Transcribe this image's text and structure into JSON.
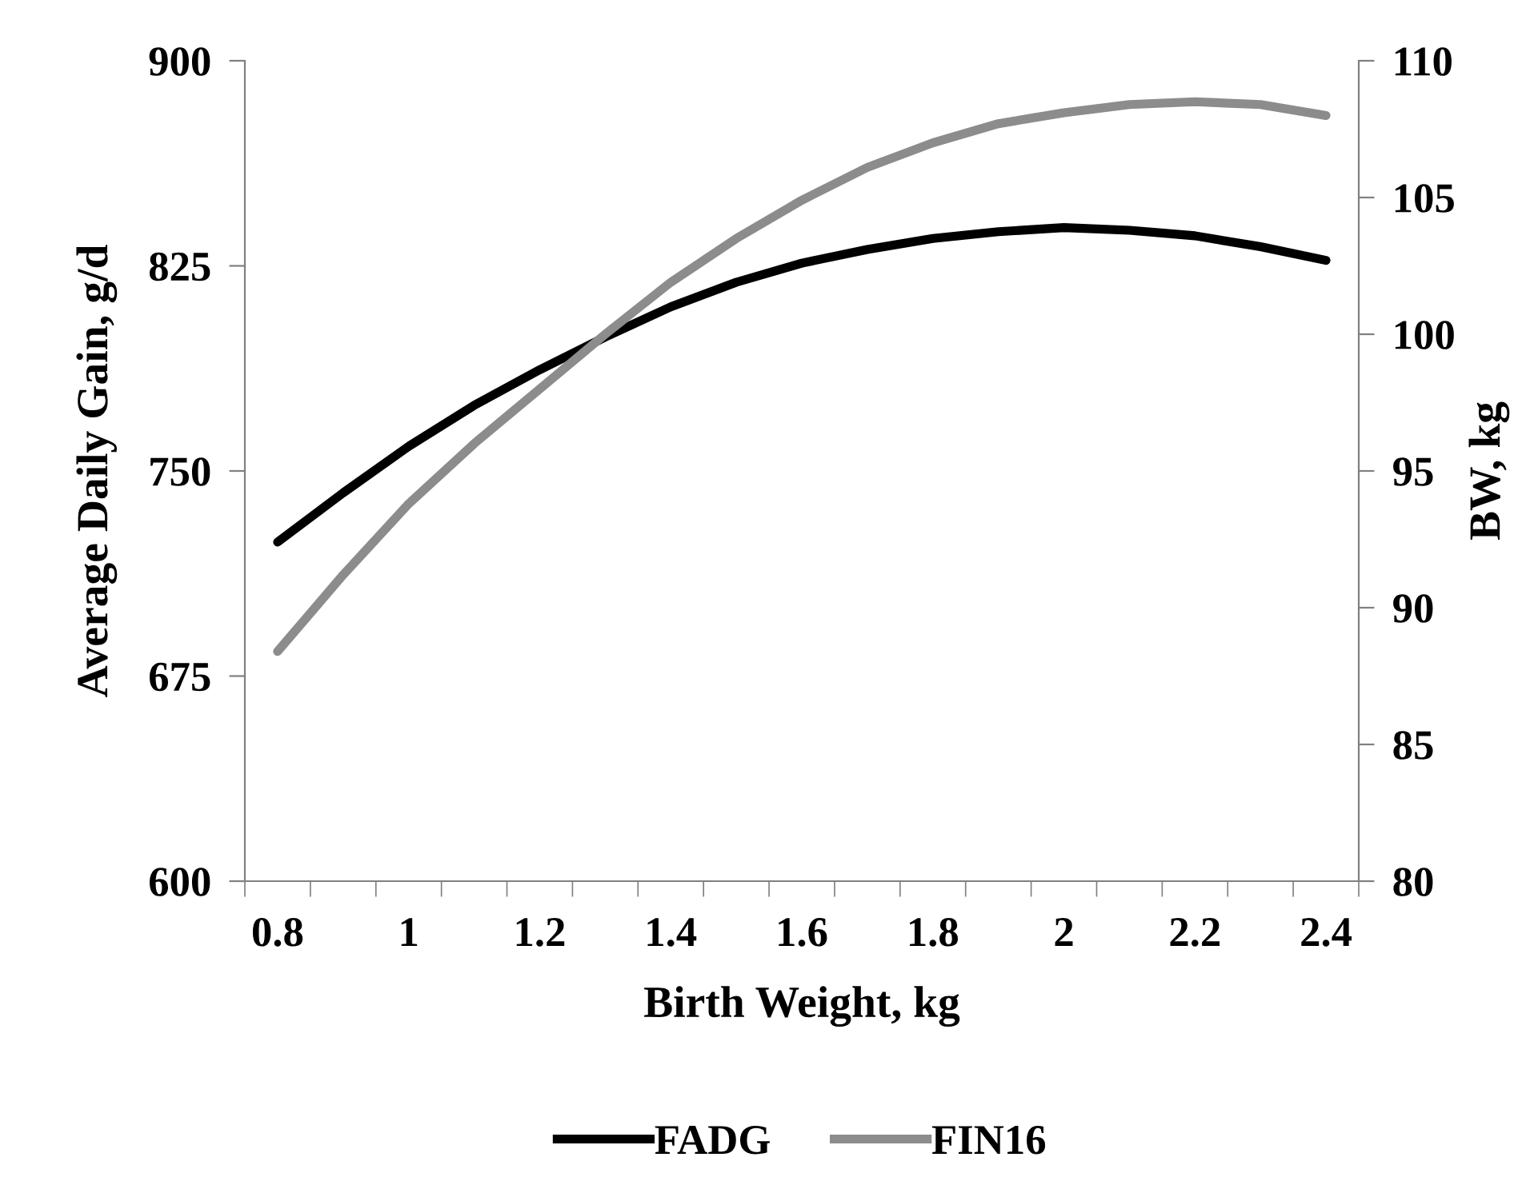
{
  "chart_data": {
    "type": "line",
    "xlabel": "Birth Weight, kg",
    "ylabel": "Average Daily Gain, g/d",
    "y2label": "BW, kg",
    "categories": [
      "0.8",
      null,
      "1",
      null,
      "1.2",
      null,
      "1.4",
      null,
      "1.6",
      null,
      "1.8",
      null,
      "2",
      null,
      "2.2",
      null,
      "2.4"
    ],
    "series": [
      {
        "name": "FADG",
        "color": "#000000",
        "values": [
          724,
          742,
          759,
          774,
          787,
          799,
          810,
          819,
          826,
          831,
          835,
          837.5,
          839,
          838,
          836,
          832,
          827
        ]
      },
      {
        "name": "FIN16",
        "color": "#8c8c8c",
        "axis": "y2",
        "values": [
          88.4,
          91.2,
          93.8,
          96.0,
          98.0,
          100.0,
          101.9,
          103.5,
          104.9,
          106.1,
          107.0,
          107.7,
          108.1,
          108.4,
          108.5,
          108.4,
          108.0
        ]
      }
    ],
    "ylim": [
      600,
      900
    ],
    "yticks": [
      600,
      675,
      750,
      825,
      900
    ],
    "y2lim": [
      80,
      110
    ],
    "y2ticks": [
      80,
      85,
      90,
      95,
      100,
      105,
      110
    ],
    "grid": false,
    "legend": "bottom",
    "marker": "none",
    "line_style": "solid"
  }
}
